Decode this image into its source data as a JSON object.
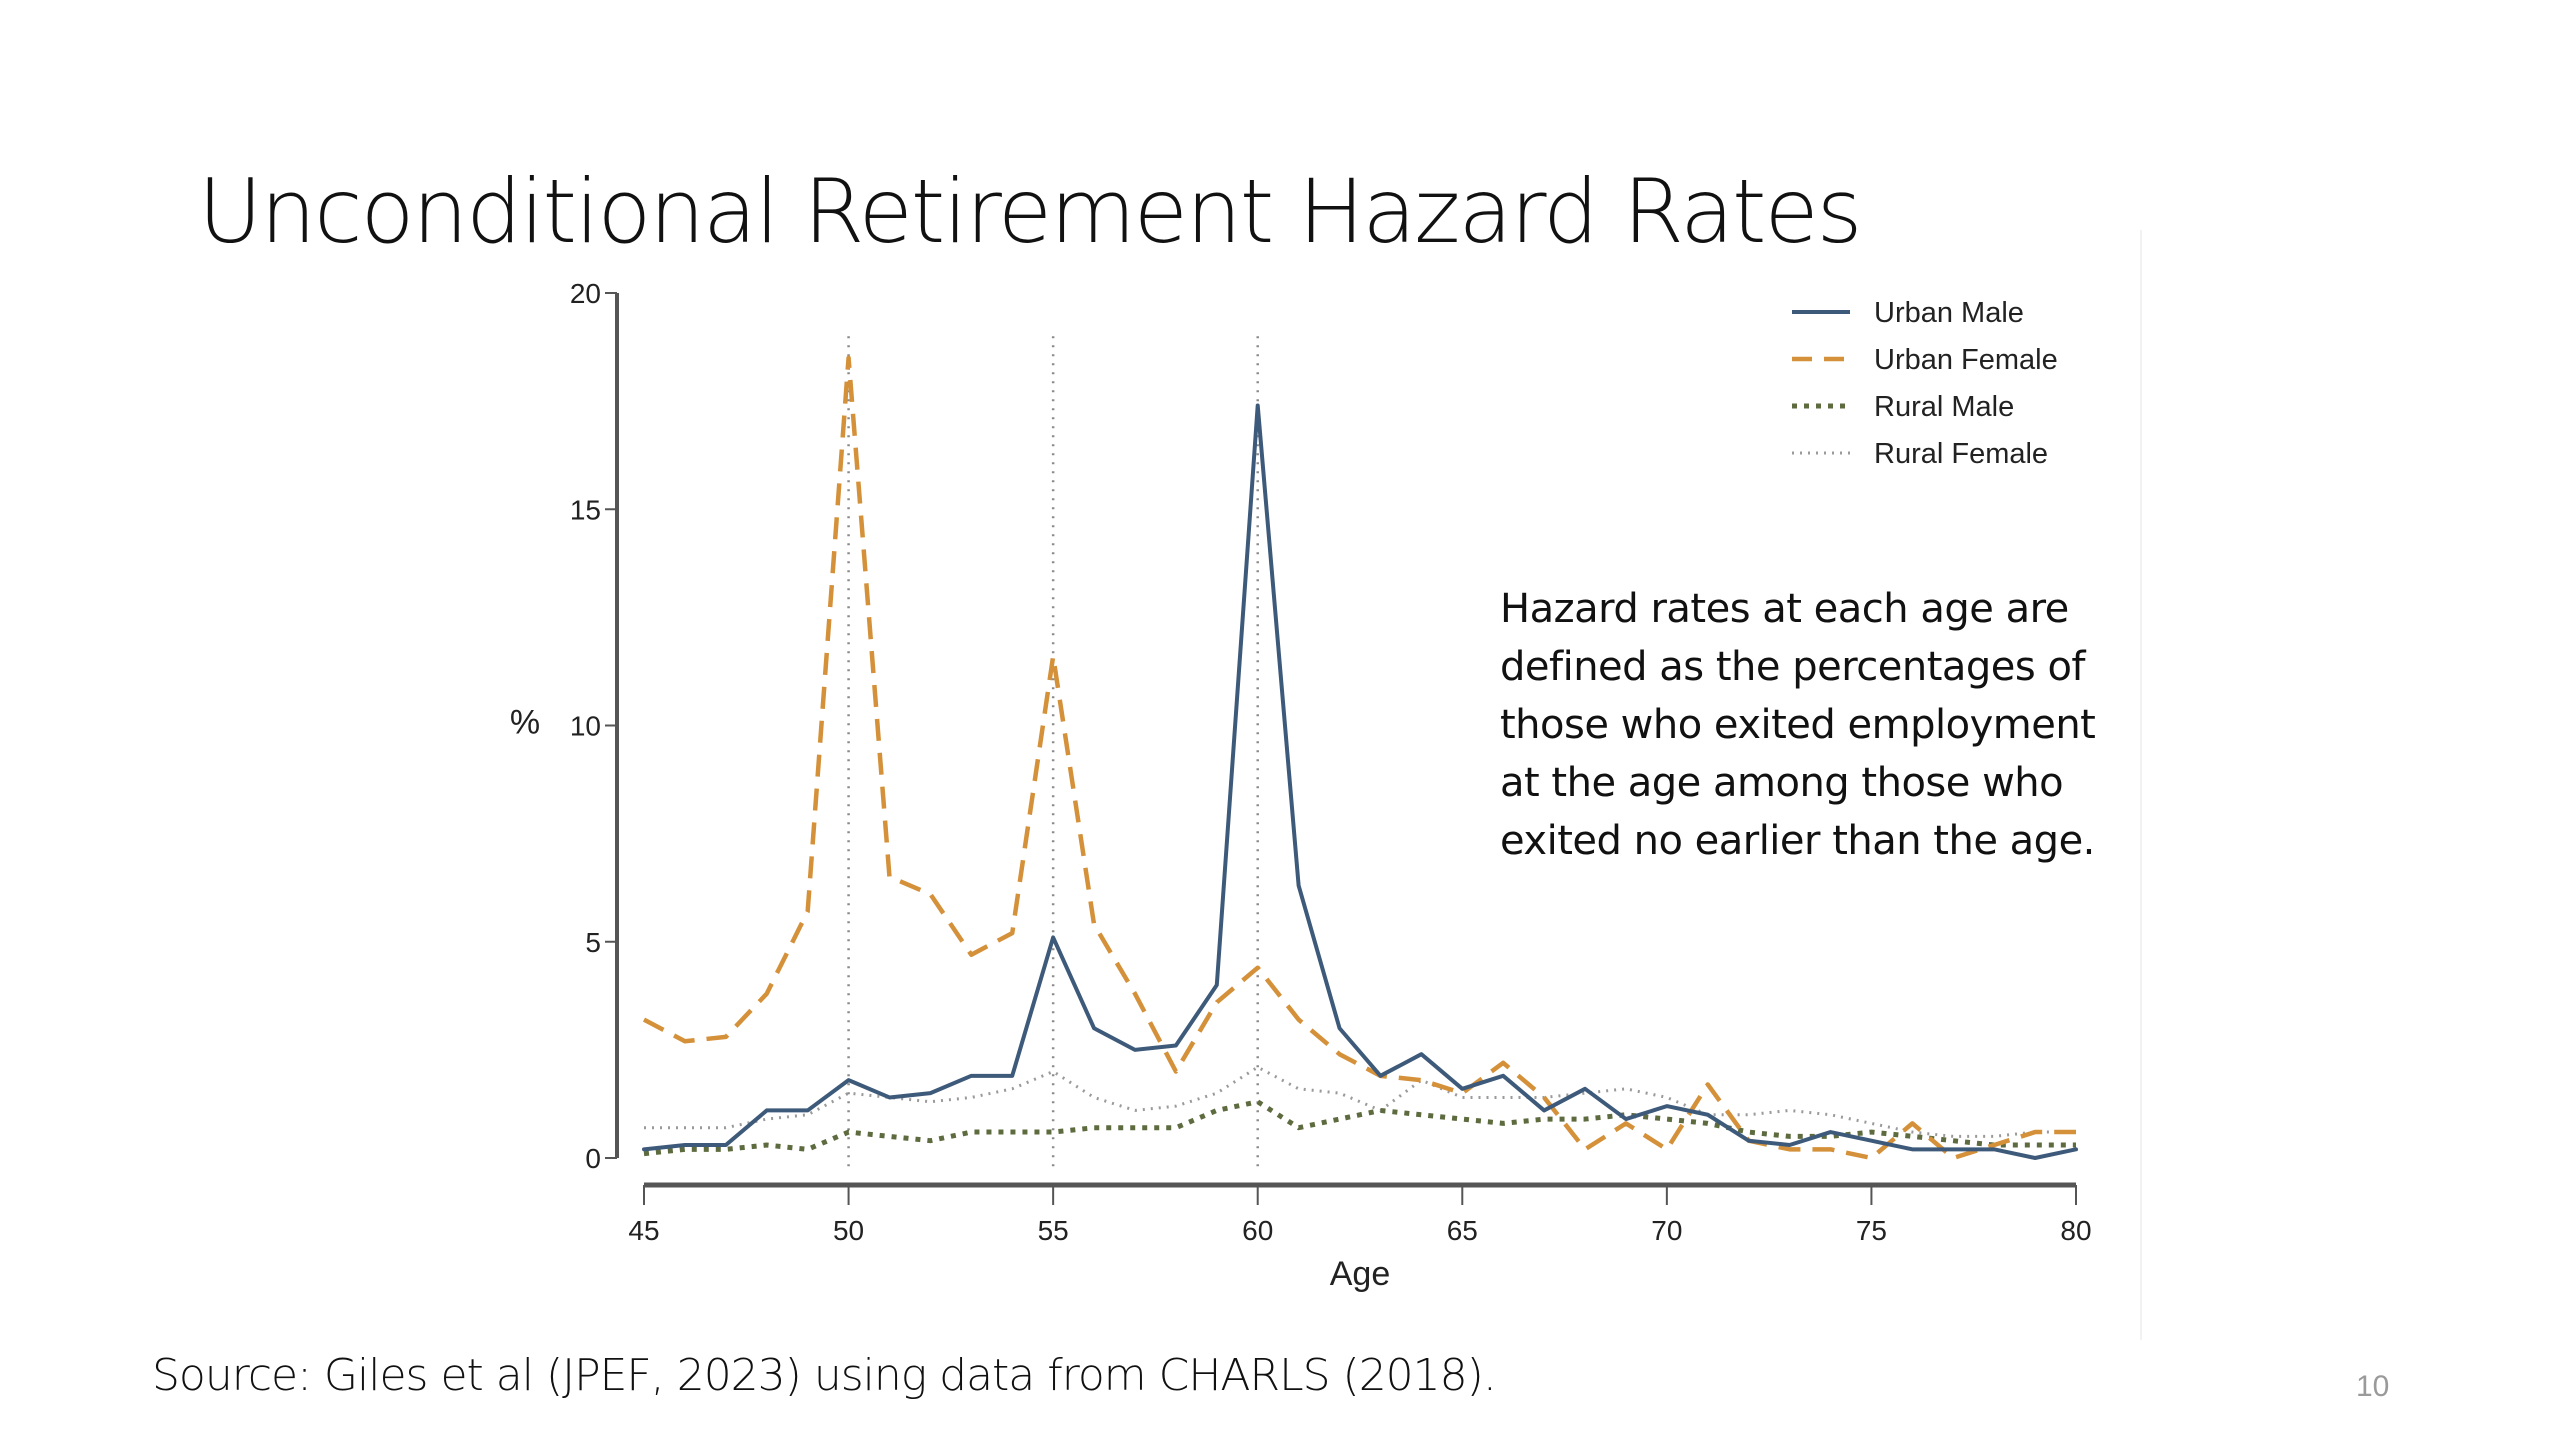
{
  "slide": {
    "title": "Unconditional Retirement Hazard Rates",
    "source": "Source: Giles et al (JPEF, 2023) using data from CHARLS (2018).",
    "page_number": "10",
    "note_lines": [
      "Hazard rates at each age are",
      "defined as the percentages of",
      "those who exited employment",
      "at the age among those who",
      "exited no earlier than the age."
    ]
  },
  "chart_data": {
    "type": "line",
    "title": "Unconditional Retirement Hazard Rates",
    "xlabel": "Age",
    "ylabel": "%",
    "xlim": [
      45,
      80
    ],
    "ylim": [
      0,
      20
    ],
    "xticks": [
      45,
      50,
      55,
      60,
      65,
      70,
      75,
      80
    ],
    "yticks": [
      0,
      5,
      10,
      15,
      20
    ],
    "grid": false,
    "legend_position": "top-right",
    "reference_lines_x": [
      50,
      55,
      60
    ],
    "x": [
      45,
      46,
      47,
      48,
      49,
      50,
      51,
      52,
      53,
      54,
      55,
      56,
      57,
      58,
      59,
      60,
      61,
      62,
      63,
      64,
      65,
      66,
      67,
      68,
      69,
      70,
      71,
      72,
      73,
      74,
      75,
      76,
      77,
      78,
      79,
      80
    ],
    "series": [
      {
        "name": "Urban Male",
        "style": "solid",
        "color": "#3e5a7a",
        "values": [
          0.2,
          0.3,
          0.3,
          1.1,
          1.1,
          1.8,
          1.4,
          1.5,
          1.9,
          1.9,
          5.1,
          3.0,
          2.5,
          2.6,
          4.0,
          17.4,
          6.3,
          3.0,
          1.9,
          2.4,
          1.6,
          1.9,
          1.1,
          1.6,
          0.9,
          1.2,
          1.0,
          0.4,
          0.3,
          0.6,
          0.4,
          0.2,
          0.2,
          0.2,
          0.0,
          0.2
        ]
      },
      {
        "name": "Urban Female",
        "style": "dashed",
        "color": "#d4913a",
        "values": [
          3.2,
          2.7,
          2.8,
          3.8,
          5.7,
          18.5,
          6.5,
          6.1,
          4.7,
          5.2,
          11.6,
          5.4,
          3.8,
          2.0,
          3.6,
          4.4,
          3.2,
          2.4,
          1.9,
          1.8,
          1.5,
          2.2,
          1.4,
          0.2,
          0.8,
          0.2,
          1.7,
          0.4,
          0.2,
          0.2,
          0.0,
          0.8,
          0.0,
          0.3,
          0.6,
          0.6
        ]
      },
      {
        "name": "Rural Male",
        "style": "dotted-coarse",
        "color": "#5d6b3f",
        "values": [
          0.1,
          0.2,
          0.2,
          0.3,
          0.2,
          0.6,
          0.5,
          0.4,
          0.6,
          0.6,
          0.6,
          0.7,
          0.7,
          0.7,
          1.1,
          1.3,
          0.7,
          0.9,
          1.1,
          1.0,
          0.9,
          0.8,
          0.9,
          0.9,
          1.0,
          0.9,
          0.8,
          0.6,
          0.5,
          0.5,
          0.6,
          0.5,
          0.4,
          0.3,
          0.3,
          0.3
        ]
      },
      {
        "name": "Rural Female",
        "style": "dotted-fine",
        "color": "#9a9a9a",
        "values": [
          0.7,
          0.7,
          0.7,
          0.9,
          1.0,
          1.5,
          1.4,
          1.3,
          1.4,
          1.6,
          2.0,
          1.4,
          1.1,
          1.2,
          1.5,
          2.1,
          1.6,
          1.5,
          1.1,
          1.8,
          1.4,
          1.4,
          1.4,
          1.5,
          1.6,
          1.4,
          1.0,
          1.0,
          1.1,
          1.0,
          0.8,
          0.6,
          0.5,
          0.5,
          0.6,
          0.6
        ]
      }
    ]
  }
}
